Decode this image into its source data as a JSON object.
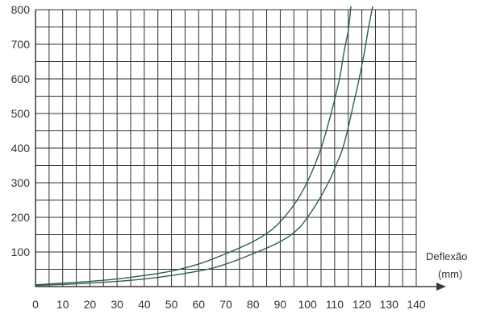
{
  "chart_data": {
    "type": "line",
    "title": "",
    "xlabel": "Deflexão",
    "xlabel_unit": "(mm)",
    "ylabel": "",
    "xlim": [
      0,
      140
    ],
    "ylim": [
      0,
      800
    ],
    "x_ticks": [
      "0",
      "10",
      "20",
      "30",
      "40",
      "50",
      "60",
      "70",
      "80",
      "90",
      "100",
      "110",
      "120",
      "130",
      "140"
    ],
    "y_ticks": [
      "100",
      "200",
      "300",
      "400",
      "500",
      "600",
      "700",
      "800"
    ],
    "grid": true,
    "grid_minor_x": 5,
    "grid_minor_y": 50,
    "series": [
      {
        "color": "#2f5d5a",
        "x": [
          0,
          10,
          20,
          30,
          40,
          50,
          60,
          70,
          80,
          87,
          92,
          97,
          101,
          105,
          108,
          110,
          112,
          113.5,
          115,
          116
        ],
        "y": [
          5,
          10,
          15,
          22,
          32,
          45,
          65,
          95,
          130,
          165,
          205,
          260,
          320,
          400,
          480,
          540,
          610,
          680,
          740,
          810
        ]
      },
      {
        "color": "#2f5d5a",
        "x": [
          0,
          20,
          40,
          60,
          70,
          80,
          90,
          97,
          103,
          108,
          111,
          113,
          115,
          117,
          119,
          121,
          122.5,
          124
        ],
        "y": [
          3,
          10,
          22,
          45,
          65,
          95,
          130,
          170,
          235,
          305,
          360,
          400,
          460,
          530,
          600,
          680,
          750,
          810
        ]
      }
    ]
  }
}
